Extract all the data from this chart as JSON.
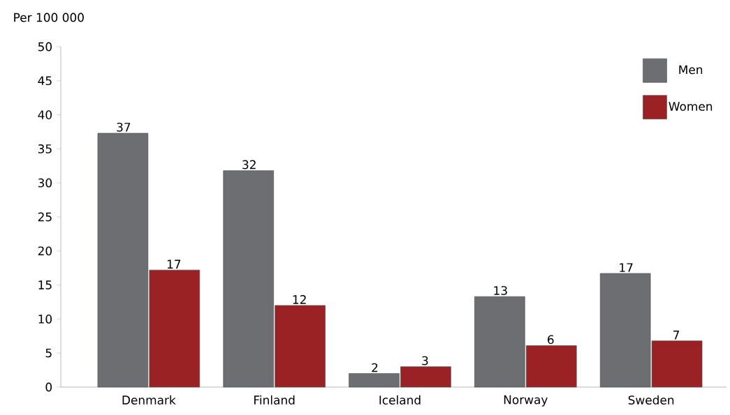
{
  "chart_data": {
    "type": "bar",
    "ylabel": "Per 100 000",
    "categories": [
      "Denmark",
      "Finland",
      "Iceland",
      "Norway",
      "Sweden"
    ],
    "series": [
      {
        "name": "Men",
        "color": "#6d6e71",
        "values": [
          37.3,
          31.8,
          2.0,
          13.3,
          16.7
        ],
        "value_labels": [
          "37",
          "32",
          "2",
          "13",
          "17"
        ]
      },
      {
        "name": "Women",
        "color": "#9a2124",
        "values": [
          17.2,
          12.0,
          3.0,
          6.1,
          6.8
        ],
        "value_labels": [
          "17",
          "12",
          "3",
          "6",
          "7"
        ]
      }
    ],
    "ylim": [
      0,
      50
    ],
    "yticks": [
      0,
      5,
      10,
      15,
      20,
      25,
      30,
      35,
      40,
      45,
      50
    ],
    "legend": "top right"
  }
}
